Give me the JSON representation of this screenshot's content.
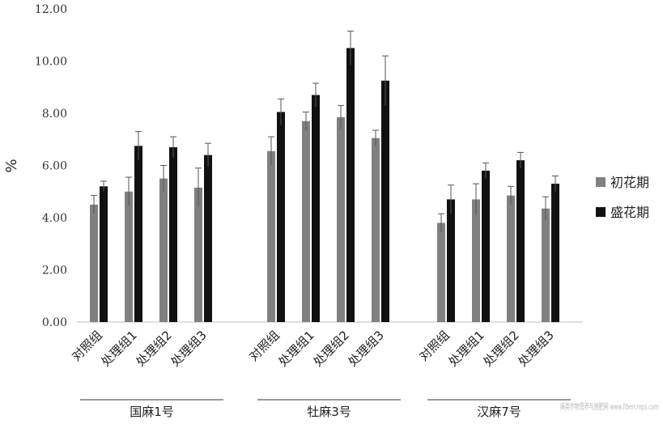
{
  "chart_data": {
    "type": "bar",
    "title": "",
    "ylabel": "%",
    "xlabel": "",
    "ylim": [
      0,
      12
    ],
    "yticks": [
      "0.00",
      "2.00",
      "4.00",
      "6.00",
      "8.00",
      "10.00",
      "12.00"
    ],
    "grid": false,
    "legend_position": "right",
    "groups": [
      {
        "name": "国麻1号",
        "categories": [
          "对照组",
          "处理组1",
          "处理组2",
          "处理组3"
        ],
        "series": [
          {
            "name": "初花期",
            "color": "#808080",
            "values": [
              4.5,
              5.0,
              5.5,
              5.15
            ],
            "errors": [
              0.35,
              0.55,
              0.5,
              0.75
            ]
          },
          {
            "name": "盛花期",
            "color": "#111111",
            "values": [
              5.2,
              6.75,
              6.7,
              6.4
            ],
            "errors": [
              0.2,
              0.55,
              0.4,
              0.45
            ]
          }
        ]
      },
      {
        "name": "牡麻3号",
        "categories": [
          "对照组",
          "处理组1",
          "处理组2",
          "处理组3"
        ],
        "series": [
          {
            "name": "初花期",
            "color": "#808080",
            "values": [
              6.55,
              7.7,
              7.85,
              7.05
            ],
            "errors": [
              0.55,
              0.35,
              0.45,
              0.3
            ]
          },
          {
            "name": "盛花期",
            "color": "#111111",
            "values": [
              8.05,
              8.7,
              10.5,
              9.25
            ],
            "errors": [
              0.5,
              0.45,
              0.65,
              0.95
            ]
          }
        ]
      },
      {
        "name": "汉麻7号",
        "categories": [
          "对照组",
          "处理组1",
          "处理组2",
          "处理组3"
        ],
        "series": [
          {
            "name": "初花期",
            "color": "#808080",
            "values": [
              3.8,
              4.7,
              4.85,
              4.35
            ],
            "errors": [
              0.35,
              0.6,
              0.35,
              0.45
            ]
          },
          {
            "name": "盛花期",
            "color": "#111111",
            "values": [
              4.7,
              5.8,
              6.2,
              5.3
            ],
            "errors": [
              0.55,
              0.3,
              0.3,
              0.3
            ]
          }
        ]
      }
    ]
  },
  "legend": [
    {
      "label": "初花期",
      "color": "#808080"
    },
    {
      "label": "盛花期",
      "color": "#111111"
    }
  ],
  "watermark": "麻类作物营养与施肥网 www.fibercrops.com"
}
